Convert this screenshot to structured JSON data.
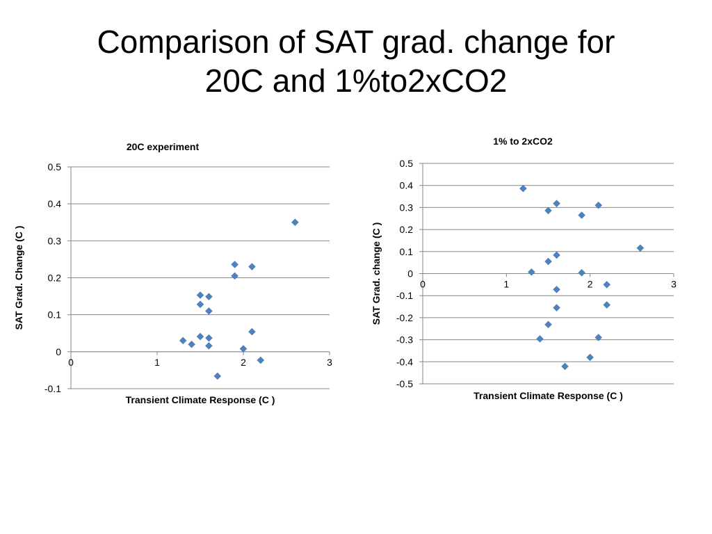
{
  "slide": {
    "title_line1": "Comparison of SAT grad. change for",
    "title_line2": "20C and 1%to2xCO2"
  },
  "colors": {
    "marker": "#4F81BD",
    "grid": "#868686",
    "axis": "#868686"
  },
  "chart_data": [
    {
      "type": "scatter",
      "title": "20C  experiment",
      "xlabel": "Transient Climate Response (C )",
      "ylabel": "SAT Grad. Change (C )",
      "xlim": [
        0,
        3
      ],
      "ylim": [
        -0.1,
        0.5
      ],
      "xticks": [
        "0",
        "1",
        "2",
        "3"
      ],
      "yticks": [
        "0.5",
        "0.4",
        "0.3",
        "0.2",
        "0.1",
        "0",
        "-0.1"
      ],
      "grid": true,
      "points": [
        {
          "x": 1.3,
          "y": 0.03
        },
        {
          "x": 1.4,
          "y": 0.02
        },
        {
          "x": 1.5,
          "y": 0.153
        },
        {
          "x": 1.5,
          "y": 0.128
        },
        {
          "x": 1.5,
          "y": 0.041
        },
        {
          "x": 1.6,
          "y": 0.149
        },
        {
          "x": 1.6,
          "y": 0.11
        },
        {
          "x": 1.6,
          "y": 0.037
        },
        {
          "x": 1.6,
          "y": 0.016
        },
        {
          "x": 1.7,
          "y": -0.066
        },
        {
          "x": 1.9,
          "y": 0.236
        },
        {
          "x": 1.9,
          "y": 0.205
        },
        {
          "x": 2.0,
          "y": 0.008
        },
        {
          "x": 2.1,
          "y": 0.23
        },
        {
          "x": 2.1,
          "y": 0.054
        },
        {
          "x": 2.2,
          "y": -0.023
        },
        {
          "x": 2.6,
          "y": 0.35
        }
      ]
    },
    {
      "type": "scatter",
      "title": "1% to 2xCO2",
      "xlabel": "Transient Climate Response (C )",
      "ylabel": "SAT Grad. change (C )",
      "xlim": [
        0,
        3
      ],
      "ylim": [
        -0.5,
        0.5
      ],
      "xticks": [
        "0",
        "1",
        "2",
        "3"
      ],
      "yticks": [
        "0.5",
        "0.4",
        "0.3",
        "0.2",
        "0.1",
        "0",
        "-0.1",
        "-0.2",
        "-0.3",
        "-0.4",
        "-0.5"
      ],
      "grid": true,
      "points": [
        {
          "x": 1.2,
          "y": 0.386
        },
        {
          "x": 1.3,
          "y": 0.007
        },
        {
          "x": 1.4,
          "y": -0.296
        },
        {
          "x": 1.5,
          "y": 0.286
        },
        {
          "x": 1.5,
          "y": 0.055
        },
        {
          "x": 1.5,
          "y": -0.231
        },
        {
          "x": 1.6,
          "y": 0.318
        },
        {
          "x": 1.6,
          "y": 0.084
        },
        {
          "x": 1.6,
          "y": -0.072
        },
        {
          "x": 1.6,
          "y": -0.155
        },
        {
          "x": 1.7,
          "y": -0.421
        },
        {
          "x": 1.9,
          "y": 0.265
        },
        {
          "x": 1.9,
          "y": 0.004
        },
        {
          "x": 2.0,
          "y": -0.38
        },
        {
          "x": 2.1,
          "y": 0.31
        },
        {
          "x": 2.1,
          "y": -0.29
        },
        {
          "x": 2.2,
          "y": -0.05
        },
        {
          "x": 2.2,
          "y": -0.142
        },
        {
          "x": 2.6,
          "y": 0.116
        }
      ]
    }
  ]
}
